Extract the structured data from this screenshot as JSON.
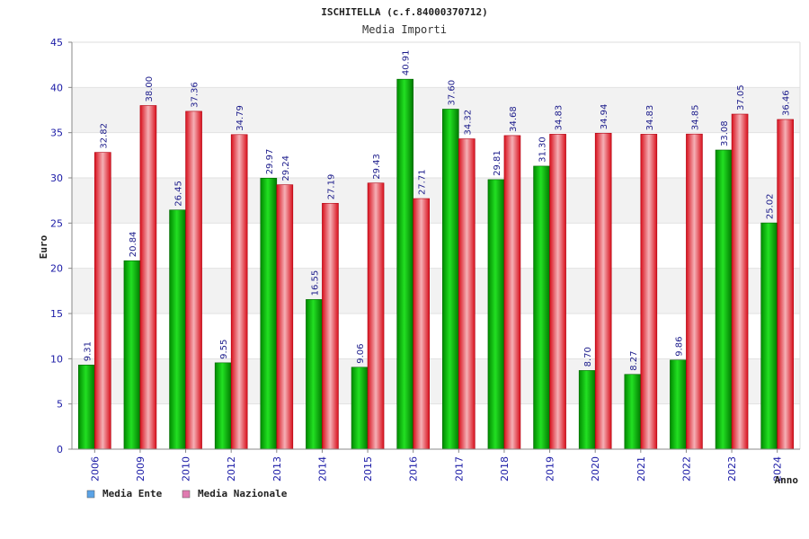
{
  "chart_data": {
    "type": "bar",
    "title": "ISCHITELLA (c.f.84000370712)",
    "subtitle": "Media Importi",
    "xlabel": "Anno",
    "ylabel": "Euro",
    "ylim": [
      0,
      45
    ],
    "yticks": [
      "0",
      "5",
      "10",
      "15",
      "20",
      "25",
      "30",
      "35",
      "40",
      "45"
    ],
    "categories": [
      "2006",
      "2009",
      "2010",
      "2012",
      "2013",
      "2014",
      "2015",
      "2016",
      "2017",
      "2018",
      "2019",
      "2020",
      "2021",
      "2022",
      "2023",
      "2024"
    ],
    "series": [
      {
        "name": "Media Ente",
        "legend_color": "#5ba3e6",
        "bar_color": "#00bb00",
        "values": [
          9.31,
          20.84,
          26.45,
          9.55,
          29.97,
          16.55,
          9.06,
          40.91,
          37.6,
          29.81,
          31.3,
          8.7,
          8.27,
          9.86,
          33.08,
          25.02
        ],
        "labels": [
          "9.31",
          "20.84",
          "26.45",
          "9.55",
          "29.97",
          "16.55",
          "9.06",
          "40.91",
          "37.60",
          "29.81",
          "31.30",
          "8.70",
          "8.27",
          "9.86",
          "33.08",
          "25.02"
        ]
      },
      {
        "name": "Media Nazionale",
        "legend_color": "#e07bb0",
        "bar_color": "#ee2a36",
        "values": [
          32.82,
          38.0,
          37.36,
          34.79,
          29.24,
          27.19,
          29.43,
          27.71,
          34.32,
          34.68,
          34.83,
          34.94,
          34.83,
          34.85,
          37.05,
          36.46
        ],
        "labels": [
          "32.82",
          "38.00",
          "37.36",
          "34.79",
          "29.24",
          "27.19",
          "29.43",
          "27.71",
          "34.32",
          "34.68",
          "34.83",
          "34.94",
          "34.83",
          "34.85",
          "37.05",
          "36.46"
        ]
      }
    ],
    "grid": true,
    "legend": "bottom-left"
  }
}
